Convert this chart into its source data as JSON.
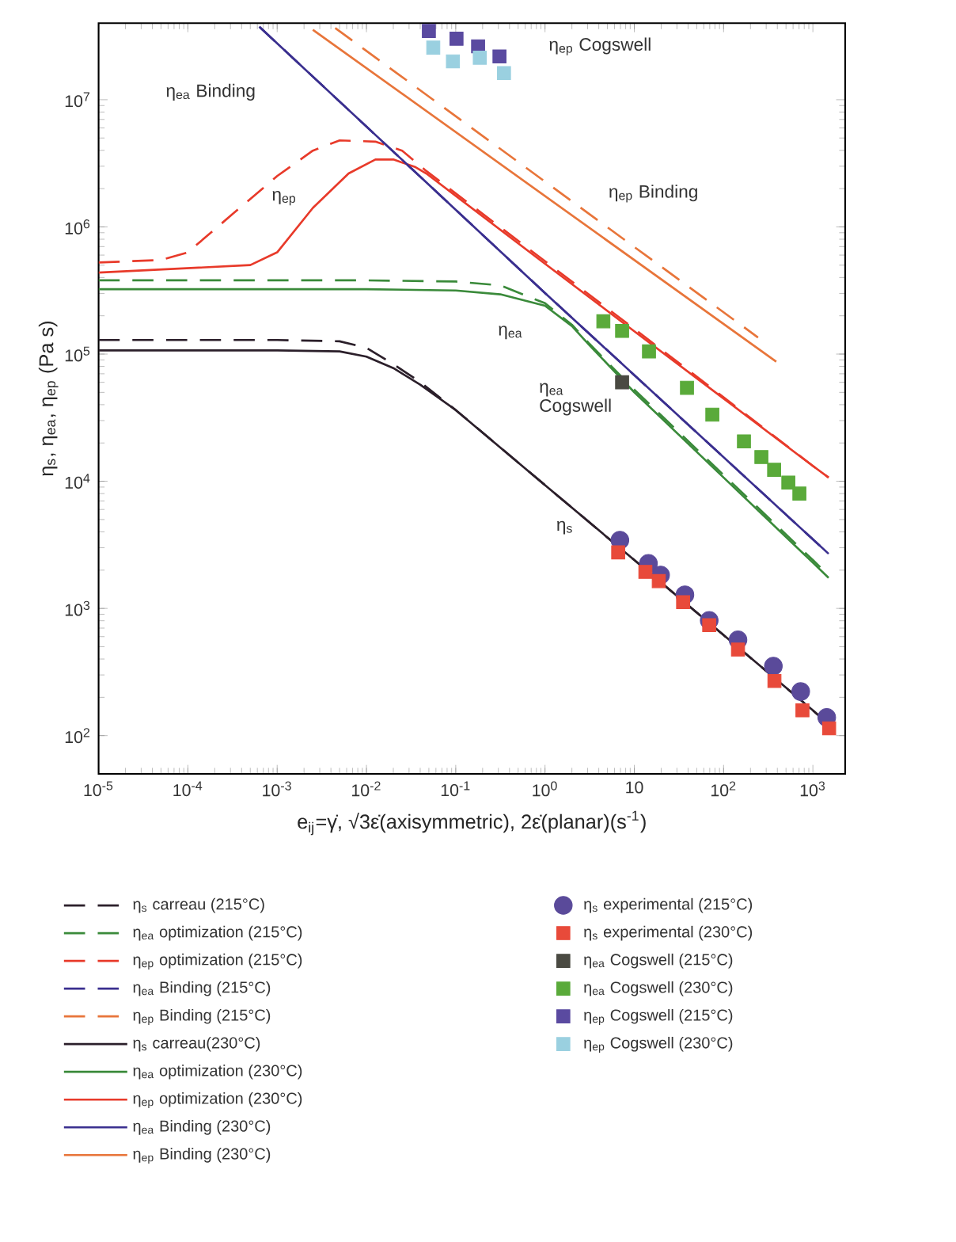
{
  "chart_data": {
    "type": "line",
    "xlabel": "e$_{ij}$=γ̇, √3ε̇(axisymmetric), 2ε̇(planar)(s$^{-1}$)",
    "ylabel": "η$_{s}$, η$_{ea}$, η$_{ep}$ (Pa s)",
    "log": "xy",
    "legend": "bottom",
    "xlim": [
      1e-05,
      2300
    ],
    "ylim": [
      50,
      40000000
    ],
    "xticks": [
      {
        "value": 1e-05,
        "label": "10$^{-5}$"
      },
      {
        "value": 0.0001,
        "label": "10$^{-4}$"
      },
      {
        "value": 0.001,
        "label": "10$^{-3}$"
      },
      {
        "value": 0.01,
        "label": "10$^{-2}$"
      },
      {
        "value": 0.1,
        "label": "10$^{-1}$"
      },
      {
        "value": 1,
        "label": "10$^{0}$"
      },
      10,
      {
        "value": 100,
        "label": "10$^{2}$"
      },
      {
        "value": 1000,
        "label": "10$^{3}$"
      }
    ],
    "yticks": [
      {
        "value": 100,
        "label": "10$^{2}$"
      },
      {
        "value": 1000,
        "label": "10$^{3}$"
      },
      {
        "value": 10000,
        "label": "10$^{4}$"
      },
      {
        "value": 100000,
        "label": "10$^{5}$"
      },
      {
        "value": 1000000,
        "label": "10$^{6}$"
      },
      {
        "value": 10000000,
        "label": "10$^{7}$"
      }
    ],
    "annotations": [
      "η$_{ea}$ Binding",
      "η$_{ep}$ Cogswell",
      "η$_{ep}$",
      "η$_{ep}$ Binding",
      "η$_{ea}$",
      "η$_{ea}$ Cogswell",
      "η$_{s}$"
    ],
    "series": [
      {
        "name": "η$_{s}$ carreau (215°C)",
        "line_style": "dashed",
        "color": "#2b1f2a",
        "x": [
          1e-05,
          0.001,
          0.005,
          0.01,
          0.02,
          0.04,
          0.1,
          1,
          10,
          100,
          1000,
          1500
        ],
        "values": [
          129000,
          129000,
          126000,
          112000,
          83200,
          60300,
          36300,
          9330,
          2400,
          617,
          158,
          123
        ]
      },
      {
        "name": "η$_{ea}$ optimization (215°C)",
        "line_style": "dashed",
        "color": "#3a8a3a",
        "x": [
          1e-05,
          0.01,
          0.1,
          0.316,
          1,
          2,
          3.16,
          10,
          100,
          1000,
          1500
        ],
        "values": [
          380000,
          380000,
          372000,
          347000,
          251000,
          170000,
          120000,
          52500,
          11200,
          2400,
          1820
        ]
      },
      {
        "name": "η$_{ep}$ optimization (215°C)",
        "line_style": "dashed",
        "color": "#e83a2a",
        "x": [
          1e-05,
          5.01e-05,
          0.0001,
          0.000316,
          0.001,
          0.00251,
          0.00501,
          0.0126,
          0.0251,
          0.0468,
          1,
          10,
          100,
          1000,
          1500
        ],
        "values": [
          525000,
          550000,
          631000,
          1260000,
          2510000,
          3980000,
          4790000,
          4680000,
          3980000,
          2750000,
          537000,
          158000,
          45700,
          13200,
          10700
        ]
      },
      {
        "name": "η$_{ea}$ Binding (215°C)",
        "line_style": "dashed",
        "color": "#3a2f8f",
        "x": [
          0.000631,
          1,
          1500
        ],
        "values": [
          37500000,
          302000,
          2690
        ]
      },
      {
        "name": "η$_{ep}$ Binding (215°C)",
        "line_style": "dashed",
        "color": "#e8753a",
        "x": [
          0.00447,
          243
        ],
        "values": [
          36600000,
          135000
        ]
      },
      {
        "name": "η$_{s}$ carreau(230°C)",
        "line_style": "solid",
        "color": "#2b1f2a",
        "x": [
          1e-05,
          0.001,
          0.005,
          0.01,
          0.02,
          0.04,
          0.1,
          1,
          10,
          100,
          1000,
          1500
        ],
        "values": [
          107000,
          107000,
          105000,
          95500,
          77600,
          57500,
          36300,
          9330,
          2400,
          617,
          158,
          123
        ]
      },
      {
        "name": "η$_{ea}$ optimization (230°C)",
        "line_style": "solid",
        "color": "#3a8a3a",
        "x": [
          1e-05,
          0.01,
          0.1,
          0.316,
          1,
          2,
          3.16,
          10,
          100,
          1000,
          1500
        ],
        "values": [
          324000,
          324000,
          316000,
          295000,
          240000,
          166000,
          117000,
          50100,
          10700,
          2290,
          1740
        ]
      },
      {
        "name": "η$_{ep}$ optimization (230°C)",
        "line_style": "solid",
        "color": "#e83a2a",
        "x": [
          1e-05,
          0.000501,
          0.001,
          0.00251,
          0.00631,
          0.0126,
          0.02,
          0.0355,
          0.0468,
          1,
          10,
          100,
          1000,
          1500
        ],
        "values": [
          437000,
          501000,
          631000,
          1410000,
          2630000,
          3390000,
          3390000,
          2950000,
          2630000,
          513000,
          151000,
          44700,
          13200,
          10700
        ]
      },
      {
        "name": "η$_{ea}$ Binding (230°C)",
        "line_style": "solid",
        "color": "#3a2f8f",
        "x": [
          0.000631,
          1,
          1500
        ],
        "values": [
          37500000,
          302000,
          2690
        ]
      },
      {
        "name": "η$_{ep}$ Binding (230°C)",
        "line_style": "solid",
        "color": "#e8753a",
        "x": [
          0.00251,
          389
        ],
        "values": [
          35500000,
          87100
        ]
      },
      {
        "name": "η$_{s}$ experimental (215°C)",
        "type": "scatter",
        "marker": "circle",
        "color": "#5a4a9a",
        "x": [
          6.9,
          14.4,
          19.7,
          36.9,
          69,
          145,
          361,
          731,
          1430
        ],
        "values": [
          3440,
          2260,
          1830,
          1280,
          805,
          566,
          352,
          222,
          139
        ]
      },
      {
        "name": "η$_{s}$ experimental (230°C)",
        "type": "scatter",
        "marker": "square",
        "color": "#e84a3a",
        "x": [
          6.6,
          13.3,
          18.8,
          35.2,
          69,
          145,
          371,
          764,
          1520
        ],
        "values": [
          2760,
          1940,
          1640,
          1120,
          738,
          475,
          269,
          158,
          114
        ]
      },
      {
        "name": "η$_{ea}$ Cogswell (215°C)",
        "type": "scatter",
        "marker": "square",
        "color": "#4a4a42",
        "x": [
          7.3
        ],
        "values": [
          60000
        ]
      },
      {
        "name": "η$_{ea}$ Cogswell (230°C)",
        "type": "scatter",
        "marker": "square",
        "color": "#5aaa3a",
        "x": [
          4.5,
          7.3,
          14.6,
          38.9,
          74.8,
          169,
          265,
          368,
          531,
          706
        ],
        "values": [
          181000,
          152000,
          105000,
          54300,
          33400,
          20600,
          15500,
          12300,
          9770,
          8000
        ]
      },
      {
        "name": "η$_{ep}$ Cogswell (215°C)",
        "type": "scatter",
        "marker": "square",
        "color": "#5a4aa0",
        "x": [
          0.05,
          0.102,
          0.178,
          0.309
        ],
        "values": [
          34700000,
          30200000,
          26300000,
          21900000
        ]
      },
      {
        "name": "η$_{ep}$ Cogswell (230°C)",
        "type": "scatter",
        "marker": "square",
        "color": "#9ad0e0",
        "x": [
          0.056,
          0.093,
          0.186,
          0.347
        ],
        "values": [
          25700000,
          20000000,
          21400000,
          16200000
        ]
      }
    ]
  }
}
